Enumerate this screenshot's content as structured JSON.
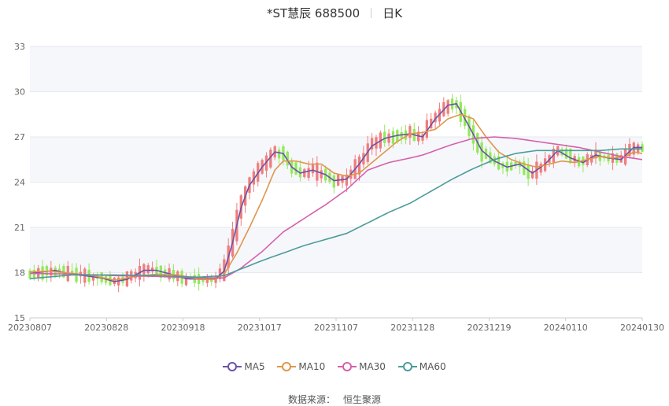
{
  "title": {
    "name": "*ST慧辰 688500",
    "period": "日K"
  },
  "source": {
    "label": "数据来源：",
    "provider": "恒生聚源"
  },
  "chart_data": {
    "type": "candlestick",
    "x_ticks": [
      "20230807",
      "20230828",
      "20230918",
      "20231017",
      "20231107",
      "20231128",
      "20231219",
      "20240110",
      "20240130"
    ],
    "ylim": [
      15,
      33
    ],
    "y_ticks": [
      "15",
      "18",
      "21",
      "24",
      "27",
      "30",
      "33"
    ],
    "colors": {
      "up": "#f07d7d",
      "down": "#93e85c",
      "grid": "#e6e8ef",
      "band": "#f6f7fb"
    },
    "legend": [
      {
        "name": "MA5",
        "color": "#6b52a6"
      },
      {
        "name": "MA10",
        "color": "#e0964b"
      },
      {
        "name": "MA30",
        "color": "#d660ab"
      },
      {
        "name": "MA60",
        "color": "#4c9c9c"
      }
    ],
    "ma_series": [
      {
        "name": "MA5",
        "values": [
          [
            0,
            17.95
          ],
          [
            3,
            18.05
          ],
          [
            6,
            18.15
          ],
          [
            9,
            17.95
          ],
          [
            13,
            17.8
          ],
          [
            17,
            17.65
          ],
          [
            20,
            17.4
          ],
          [
            23,
            17.55
          ],
          [
            27,
            18.15
          ],
          [
            30,
            18.15
          ],
          [
            34,
            17.85
          ],
          [
            37,
            17.6
          ],
          [
            41,
            17.55
          ],
          [
            44,
            17.6
          ],
          [
            46,
            18.1
          ],
          [
            48,
            20
          ],
          [
            50,
            22.3
          ],
          [
            52,
            23.8
          ],
          [
            55,
            25
          ],
          [
            58,
            26
          ],
          [
            60,
            25.9
          ],
          [
            62,
            25
          ],
          [
            64,
            24.6
          ],
          [
            67,
            24.8
          ],
          [
            70,
            24.5
          ],
          [
            72,
            24.1
          ],
          [
            75,
            24.2
          ],
          [
            78,
            25.2
          ],
          [
            81,
            26.4
          ],
          [
            84,
            26.9
          ],
          [
            87,
            27.1
          ],
          [
            90,
            27.2
          ],
          [
            93,
            27
          ],
          [
            96,
            28.2
          ],
          [
            99,
            29.1
          ],
          [
            101,
            29.2
          ],
          [
            104,
            27.7
          ],
          [
            107,
            26.1
          ],
          [
            110,
            25.4
          ],
          [
            113,
            25
          ],
          [
            116,
            25.2
          ],
          [
            119,
            24.6
          ],
          [
            122,
            25.2
          ],
          [
            125,
            26.1
          ],
          [
            128,
            25.6
          ],
          [
            131,
            25.3
          ],
          [
            134,
            25.8
          ],
          [
            137,
            25.6
          ],
          [
            140,
            25.5
          ],
          [
            143,
            26.3
          ],
          [
            145,
            26.3
          ]
        ]
      },
      {
        "name": "MA10",
        "values": [
          [
            0,
            18.05
          ],
          [
            5,
            18.1
          ],
          [
            10,
            17.95
          ],
          [
            15,
            17.8
          ],
          [
            20,
            17.5
          ],
          [
            25,
            17.75
          ],
          [
            30,
            17.9
          ],
          [
            35,
            17.85
          ],
          [
            40,
            17.55
          ],
          [
            44,
            17.55
          ],
          [
            46,
            17.9
          ],
          [
            49,
            19.3
          ],
          [
            52,
            21
          ],
          [
            55,
            22.8
          ],
          [
            58,
            24.8
          ],
          [
            60,
            25.4
          ],
          [
            63,
            25.4
          ],
          [
            66,
            25.2
          ],
          [
            69,
            25.2
          ],
          [
            72,
            24.6
          ],
          [
            75,
            24.4
          ],
          [
            78,
            24.6
          ],
          [
            81,
            25.3
          ],
          [
            84,
            26
          ],
          [
            87,
            26.7
          ],
          [
            90,
            27.2
          ],
          [
            93,
            27.3
          ],
          [
            96,
            27.5
          ],
          [
            99,
            28.2
          ],
          [
            102,
            28.5
          ],
          [
            105,
            28.2
          ],
          [
            108,
            27
          ],
          [
            111,
            26
          ],
          [
            114,
            25.5
          ],
          [
            117,
            25.2
          ],
          [
            120,
            25
          ],
          [
            123,
            25.2
          ],
          [
            126,
            25.4
          ],
          [
            129,
            25.3
          ],
          [
            132,
            25.5
          ],
          [
            135,
            25.7
          ],
          [
            138,
            25.6
          ],
          [
            141,
            25.7
          ],
          [
            143,
            26
          ],
          [
            145,
            25.9
          ]
        ]
      },
      {
        "name": "MA30",
        "values": [
          [
            0,
            17.95
          ],
          [
            10,
            17.9
          ],
          [
            20,
            17.8
          ],
          [
            30,
            17.75
          ],
          [
            40,
            17.65
          ],
          [
            46,
            17.65
          ],
          [
            50,
            18.3
          ],
          [
            55,
            19.4
          ],
          [
            60,
            20.7
          ],
          [
            65,
            21.6
          ],
          [
            70,
            22.5
          ],
          [
            75,
            23.5
          ],
          [
            80,
            24.8
          ],
          [
            85,
            25.3
          ],
          [
            90,
            25.6
          ],
          [
            93,
            25.8
          ],
          [
            96,
            26.1
          ],
          [
            100,
            26.5
          ],
          [
            105,
            26.9
          ],
          [
            110,
            27
          ],
          [
            115,
            26.9
          ],
          [
            120,
            26.7
          ],
          [
            125,
            26.5
          ],
          [
            130,
            26.3
          ],
          [
            135,
            26
          ],
          [
            140,
            25.7
          ],
          [
            145,
            25.5
          ]
        ]
      },
      {
        "name": "MA60",
        "values": [
          [
            0,
            17.6
          ],
          [
            10,
            17.85
          ],
          [
            20,
            17.85
          ],
          [
            30,
            17.8
          ],
          [
            40,
            17.7
          ],
          [
            46,
            17.8
          ],
          [
            55,
            18.8
          ],
          [
            60,
            19.3
          ],
          [
            65,
            19.8
          ],
          [
            70,
            20.2
          ],
          [
            75,
            20.6
          ],
          [
            80,
            21.3
          ],
          [
            85,
            22
          ],
          [
            90,
            22.6
          ],
          [
            95,
            23.4
          ],
          [
            100,
            24.2
          ],
          [
            105,
            24.9
          ],
          [
            110,
            25.5
          ],
          [
            115,
            25.9
          ],
          [
            120,
            26.1
          ],
          [
            125,
            26.1
          ],
          [
            130,
            26.1
          ],
          [
            135,
            26.1
          ],
          [
            140,
            26.2
          ],
          [
            145,
            26.2
          ]
        ]
      }
    ]
  }
}
